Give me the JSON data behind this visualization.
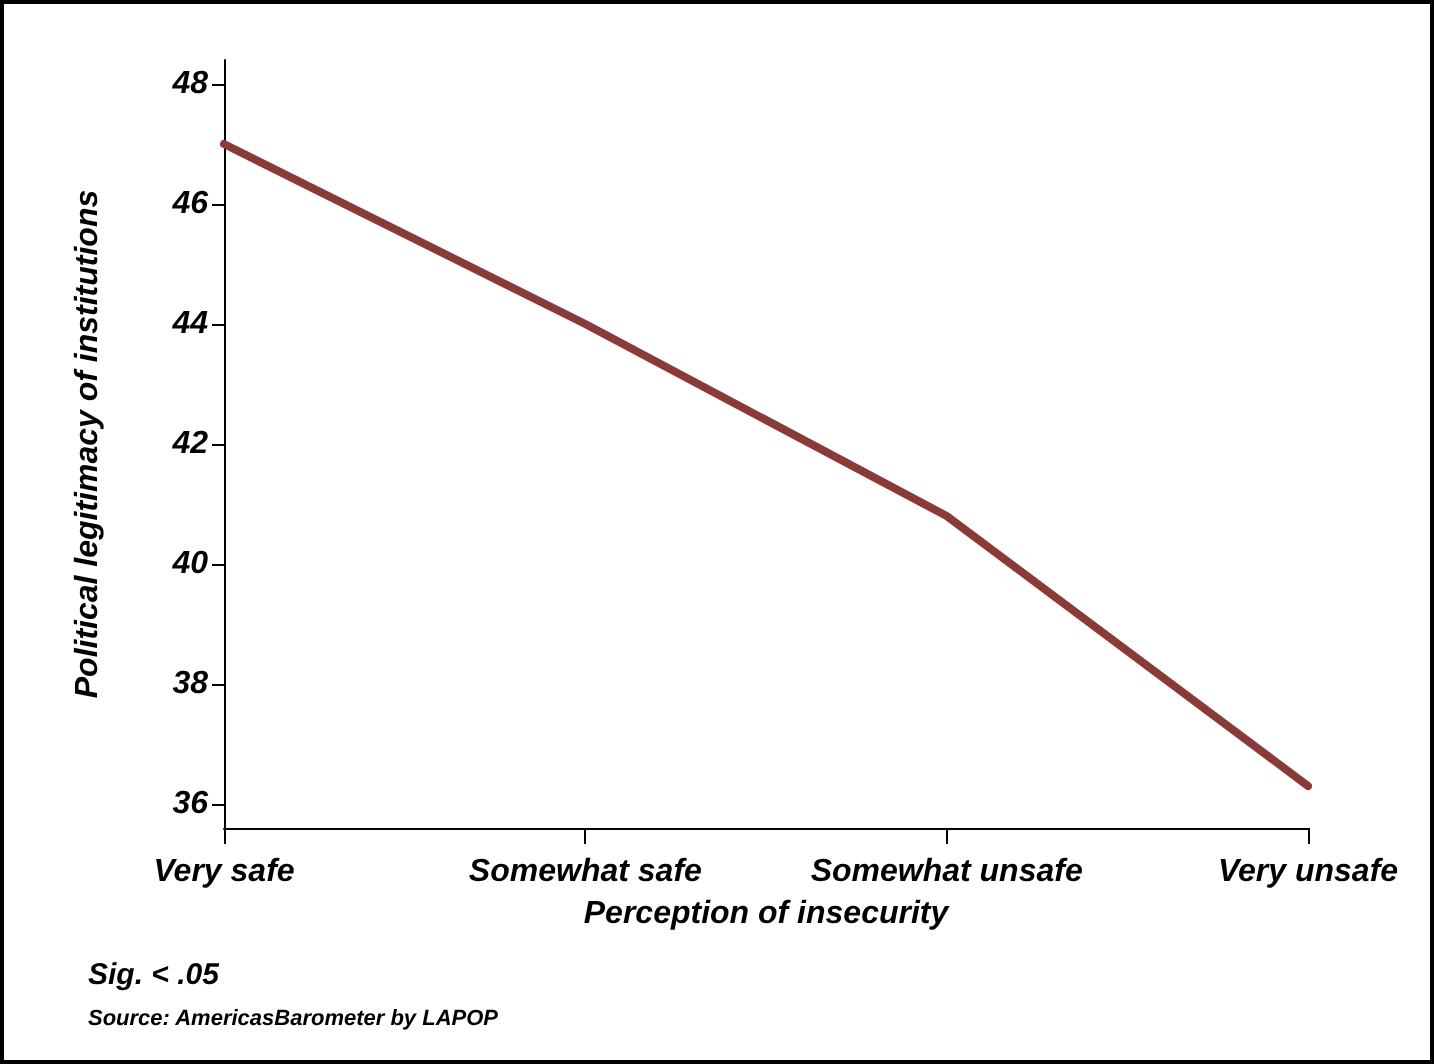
{
  "chart_data": {
    "type": "line",
    "xlabel": "Perception of insecurity",
    "ylabel": "Political legitimacy of institutions",
    "categories": [
      "Very safe",
      "Somewhat safe",
      "Somewhat unsafe",
      "Very unsafe"
    ],
    "series": [
      {
        "color": "#8b3a3a",
        "values": [
          47.0,
          44.0,
          40.8,
          36.3
        ]
      }
    ],
    "ylim": [
      35.6,
      48.4
    ],
    "yticks": [
      36,
      38,
      40,
      42,
      44,
      46,
      48
    ],
    "grid": false,
    "marker": "none",
    "line_style": "solid",
    "annotations": [
      "Sig. < .05",
      "Source: AmericasBarometer by LAPOP"
    ]
  }
}
